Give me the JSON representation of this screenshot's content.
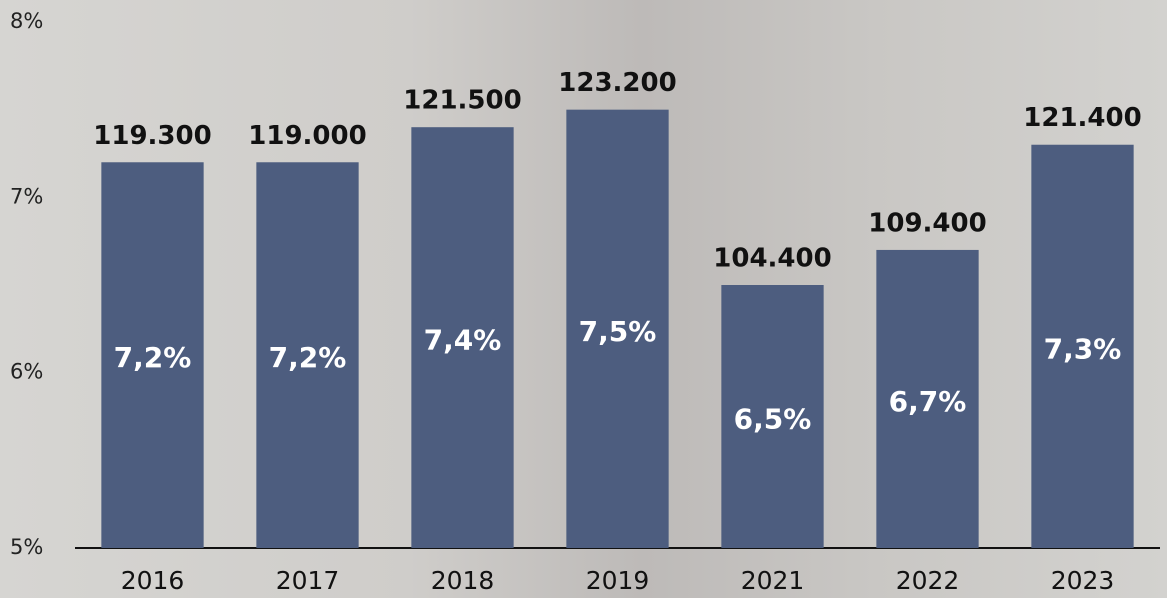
{
  "chart_data": {
    "type": "bar",
    "categories": [
      "2016",
      "2017",
      "2018",
      "2019",
      "2021",
      "2022",
      "2023"
    ],
    "values": [
      7.2,
      7.2,
      7.4,
      7.5,
      6.5,
      6.7,
      7.3
    ],
    "value_labels": [
      "7,2%",
      "7,2%",
      "7,4%",
      "7,5%",
      "6,5%",
      "6,7%",
      "7,3%"
    ],
    "bar_annotations": [
      "119.300",
      "119.000",
      "121.500",
      "123.200",
      "104.400",
      "109.400",
      "121.400"
    ],
    "color": "#4d5d7f",
    "ylim": [
      5,
      8
    ],
    "yticks": [
      {
        "value": 5,
        "label": "5%"
      },
      {
        "value": 6,
        "label": "6%"
      },
      {
        "value": 7,
        "label": "7%"
      },
      {
        "value": 8,
        "label": "8%"
      }
    ],
    "grid": false
  }
}
